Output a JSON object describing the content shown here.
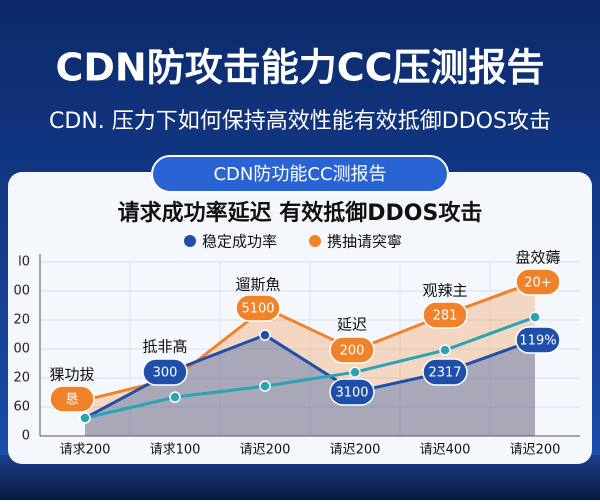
{
  "header": {
    "title": "CDN防攻击能力CC压测报告",
    "subtitle": "CDN. 压力下如何保持高效性能有效抵御DDOS攻击",
    "badge": "CDN防功能CC测报告"
  },
  "chart_data": {
    "type": "line",
    "title": "请求成功率延迟  有效抵御DDOS攻击",
    "categories": [
      "请求200",
      "请求100",
      "请迟200",
      "请迟200",
      "请迟400",
      "请迟200"
    ],
    "series": [
      {
        "name": "稳定成功率",
        "color": "#1f4fa8",
        "values": [
          31,
          114,
          174,
          76,
          110,
          166
        ]
      },
      {
        "name": "携抽请突寧",
        "color": "#f0832a",
        "values": [
          62,
          100,
          221,
          148,
          209,
          266
        ]
      },
      {
        "color": "#2aa3b5",
        "values": [
          31,
          67,
          86,
          110,
          148,
          205
        ]
      }
    ],
    "ylim": [
      0,
      300
    ],
    "yticks": [
      0,
      {
        "value": 50,
        "label": "60"
      },
      {
        "value": 100,
        "label": "20"
      },
      {
        "value": 150,
        "label": "00"
      },
      {
        "value": 200,
        "label": "20"
      },
      {
        "value": 250,
        "label": "00"
      },
      {
        "value": 300,
        "label": "l0"
      }
    ],
    "grid": true,
    "annotations": [
      "猓功拔",
      "抵非髙",
      "遛斯魚",
      "延迟",
      "观辣主",
      "盘效薅",
      "300",
      "3100",
      "2317",
      "119%",
      "恳",
      "5100",
      "200",
      "281",
      "20+"
    ]
  }
}
